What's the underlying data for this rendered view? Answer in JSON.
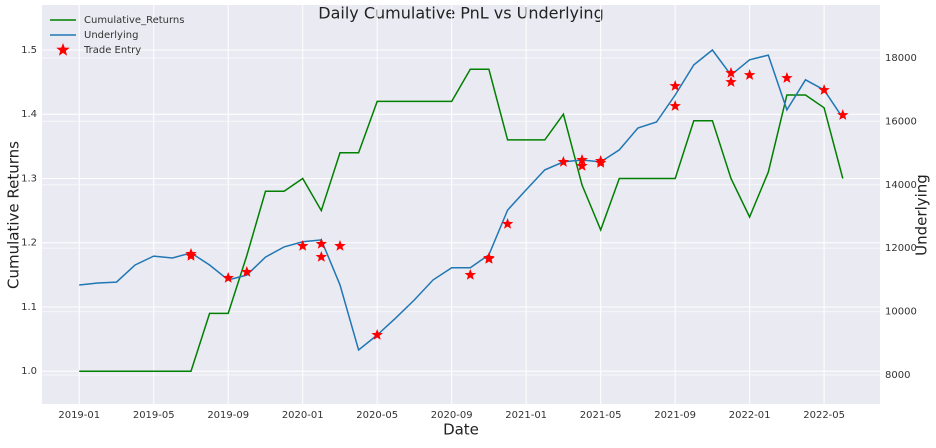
{
  "chart_data": {
    "type": "line",
    "title": "Daily Cumulative PnL vs Underlying",
    "xlabel": "Date",
    "ylabel": "Cumulative Returns",
    "y2label": "Underlying",
    "x": [
      "2019-01",
      "2019-02",
      "2019-03",
      "2019-04",
      "2019-05",
      "2019-06",
      "2019-07",
      "2019-08",
      "2019-09",
      "2019-10",
      "2019-11",
      "2019-12",
      "2020-01",
      "2020-02",
      "2020-03",
      "2020-04",
      "2020-05",
      "2020-06",
      "2020-07",
      "2020-08",
      "2020-09",
      "2020-10",
      "2020-11",
      "2020-12",
      "2021-01",
      "2021-02",
      "2021-03",
      "2021-04",
      "2021-05",
      "2021-06",
      "2021-07",
      "2021-08",
      "2021-09",
      "2021-10",
      "2021-11",
      "2021-12",
      "2022-01",
      "2022-02",
      "2022-03",
      "2022-04",
      "2022-05",
      "2022-06"
    ],
    "series": [
      {
        "name": "Cumulative_Returns",
        "color": "#008000",
        "axis": "y",
        "values": [
          1.0,
          1.0,
          1.0,
          1.0,
          1.0,
          1.0,
          1.0,
          1.09,
          1.09,
          1.18,
          1.28,
          1.28,
          1.3,
          1.25,
          1.34,
          1.34,
          1.42,
          1.42,
          1.42,
          1.42,
          1.42,
          1.47,
          1.47,
          1.36,
          1.36,
          1.36,
          1.4,
          1.29,
          1.22,
          1.3,
          1.3,
          1.3,
          1.3,
          1.39,
          1.39,
          1.3,
          1.24,
          1.31,
          1.43,
          1.43,
          1.41,
          1.3
        ]
      },
      {
        "name": "Underlying",
        "color": "#1f77b4",
        "axis": "y2",
        "values": [
          10839,
          10900,
          10930,
          11470,
          11750,
          11690,
          11850,
          11470,
          11000,
          11150,
          11720,
          12040,
          12200,
          12260,
          10840,
          8790,
          9260,
          9800,
          10370,
          11000,
          11380,
          11380,
          11790,
          13200,
          13840,
          14470,
          14720,
          14780,
          14720,
          15100,
          15790,
          15980,
          16830,
          17780,
          18250,
          17460,
          17940,
          18090,
          16360,
          17310,
          16990,
          16110
        ]
      },
      {
        "name": "Trade Entry",
        "color": "#ff0000",
        "axis": "y2",
        "marker": "star",
        "x": [
          "2019-07",
          "2019-07",
          "2019-09",
          "2019-10",
          "2020-01",
          "2020-02",
          "2020-02",
          "2020-03",
          "2020-05",
          "2020-10",
          "2020-11",
          "2020-11",
          "2020-12",
          "2021-03",
          "2021-04",
          "2021-04",
          "2021-05",
          "2021-05",
          "2021-09",
          "2021-09",
          "2021-12",
          "2021-12",
          "2022-01",
          "2022-03",
          "2022-05",
          "2022-06"
        ],
        "values": [
          11754,
          11817,
          11060,
          11249,
          12069,
          12132,
          11722,
          12069,
          9262,
          11155,
          11691,
          11659,
          12763,
          14719,
          14593,
          14782,
          14688,
          14751,
          16483,
          17114,
          17524,
          17240,
          17461,
          17366,
          16987,
          16199
        ]
      }
    ],
    "xlim": [
      "2018-11",
      "2022-08"
    ],
    "xticks": [
      "2019-01",
      "2019-05",
      "2019-09",
      "2020-01",
      "2020-05",
      "2020-09",
      "2021-01",
      "2021-05",
      "2021-09",
      "2022-01",
      "2022-05"
    ],
    "ylim": [
      0.949,
      1.57
    ],
    "yticks": [
      {
        "value": 1,
        "label": "1.0"
      },
      1.1,
      1.2,
      1.3,
      1.4,
      1.5
    ],
    "y2lim": [
      7085,
      19670
    ],
    "y2ticks": [
      8000,
      10000,
      12000,
      14000,
      16000,
      18000
    ],
    "grid": true,
    "legend": "upper left"
  }
}
